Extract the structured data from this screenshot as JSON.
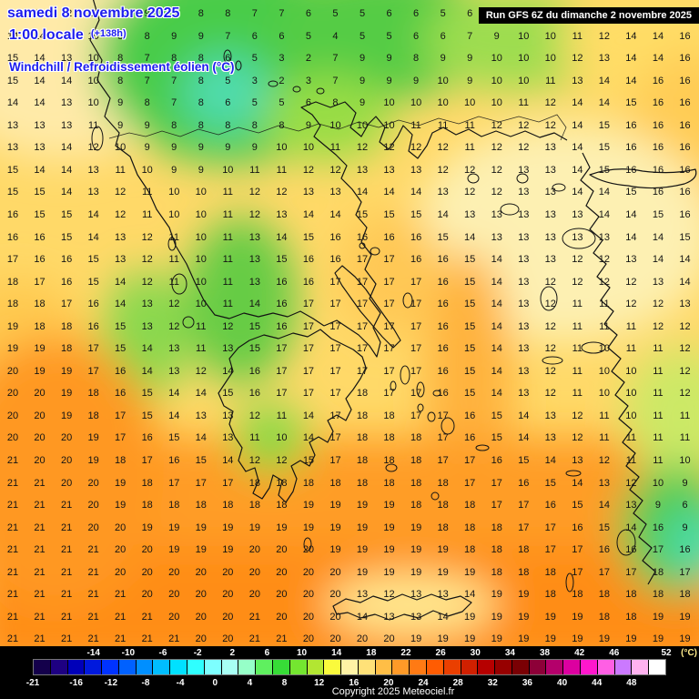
{
  "header": {
    "date": "samedi 8 novembre 2025",
    "time": "1:00 locale",
    "offset": "(+138h)",
    "parameter": "Windchill / Refroidissement éolien (°C)",
    "run": "Run GFS 6Z du dimanche 2 novembre 2025"
  },
  "footer": {
    "copyright": "Copyright 2025 Meteociel.fr",
    "unit": "(°C)",
    "scale_min": -21,
    "scale_max": 52,
    "scale_top_labels": [
      -14,
      -10,
      -6,
      -2,
      2,
      6,
      10,
      14,
      18,
      22,
      26,
      30,
      34,
      38,
      42,
      46,
      52
    ],
    "scale_bottom_labels": [
      -21,
      -16,
      -12,
      -8,
      -4,
      0,
      4,
      8,
      12,
      16,
      20,
      24,
      28,
      32,
      36,
      40,
      44,
      48
    ],
    "colorbar_colors": [
      "#14004b",
      "#1e0082",
      "#0000b9",
      "#0019dd",
      "#0033ff",
      "#0061ff",
      "#008fff",
      "#00bdff",
      "#00e1ff",
      "#2fffff",
      "#7dffff",
      "#a8fff4",
      "#96ffc8",
      "#5ff05f",
      "#37dc37",
      "#74e630",
      "#b2e632",
      "#fafa3c",
      "#fff3a5",
      "#ffe178",
      "#ffbe46",
      "#ff9a28",
      "#ff7a14",
      "#ff5c02",
      "#ea3f00",
      "#d02000",
      "#b60000",
      "#970000",
      "#7a0004",
      "#8d0038",
      "#b4006b",
      "#dc00a0",
      "#ff17cc",
      "#ff5fe4",
      "#cb79ff",
      "#ffb2ef",
      "#ffffff"
    ]
  },
  "map": {
    "temperature_grid": {
      "rows": [
        [
          14,
          13,
          12,
          10,
          8,
          9,
          9,
          8,
          8,
          7,
          7,
          6,
          5,
          5,
          6,
          6,
          5,
          6,
          8,
          9,
          9,
          10,
          11,
          12,
          14,
          14
        ],
        [
          14,
          14,
          12,
          10,
          8,
          8,
          9,
          9,
          7,
          6,
          6,
          5,
          4,
          5,
          5,
          6,
          6,
          7,
          9,
          10,
          10,
          11,
          12,
          14,
          14,
          16
        ],
        [
          15,
          14,
          13,
          10,
          8,
          7,
          8,
          8,
          6,
          5,
          3,
          2,
          7,
          9,
          9,
          8,
          9,
          9,
          10,
          10,
          10,
          12,
          13,
          14,
          14,
          16
        ],
        [
          15,
          14,
          14,
          10,
          8,
          7,
          7,
          8,
          5,
          3,
          2,
          3,
          7,
          9,
          9,
          9,
          10,
          9,
          10,
          10,
          11,
          13,
          14,
          14,
          16,
          16
        ],
        [
          14,
          14,
          13,
          10,
          9,
          8,
          7,
          8,
          6,
          5,
          5,
          6,
          8,
          9,
          10,
          10,
          10,
          10,
          10,
          11,
          12,
          14,
          14,
          15,
          16,
          16
        ],
        [
          13,
          13,
          13,
          11,
          9,
          9,
          8,
          8,
          8,
          8,
          8,
          9,
          10,
          10,
          10,
          11,
          11,
          11,
          12,
          12,
          12,
          14,
          15,
          16,
          16,
          16
        ],
        [
          13,
          13,
          14,
          12,
          10,
          9,
          9,
          9,
          9,
          9,
          10,
          10,
          11,
          12,
          12,
          12,
          12,
          11,
          12,
          12,
          13,
          14,
          15,
          16,
          16,
          16
        ],
        [
          15,
          14,
          14,
          13,
          11,
          10,
          9,
          9,
          10,
          11,
          11,
          12,
          12,
          13,
          13,
          13,
          12,
          12,
          12,
          13,
          13,
          14,
          15,
          16,
          16,
          16
        ],
        [
          15,
          15,
          14,
          13,
          12,
          11,
          10,
          10,
          11,
          12,
          12,
          13,
          13,
          14,
          14,
          14,
          13,
          12,
          12,
          13,
          13,
          14,
          14,
          15,
          16,
          16
        ],
        [
          16,
          15,
          15,
          14,
          12,
          11,
          10,
          10,
          11,
          12,
          13,
          14,
          14,
          15,
          15,
          15,
          14,
          13,
          13,
          13,
          13,
          13,
          14,
          14,
          15,
          16
        ],
        [
          16,
          16,
          15,
          14,
          13,
          12,
          11,
          10,
          11,
          13,
          14,
          15,
          16,
          16,
          16,
          16,
          15,
          14,
          13,
          13,
          13,
          13,
          13,
          14,
          14,
          15
        ],
        [
          17,
          16,
          16,
          15,
          13,
          12,
          11,
          10,
          11,
          13,
          15,
          16,
          16,
          17,
          17,
          16,
          16,
          15,
          14,
          13,
          13,
          12,
          12,
          13,
          14,
          14
        ],
        [
          18,
          17,
          16,
          15,
          14,
          12,
          11,
          10,
          11,
          13,
          16,
          16,
          17,
          17,
          17,
          17,
          16,
          15,
          14,
          13,
          12,
          12,
          12,
          12,
          13,
          14
        ],
        [
          18,
          18,
          17,
          16,
          14,
          13,
          12,
          10,
          11,
          14,
          16,
          17,
          17,
          17,
          17,
          17,
          16,
          15,
          14,
          13,
          12,
          11,
          11,
          12,
          12,
          13
        ],
        [
          19,
          18,
          18,
          16,
          15,
          13,
          12,
          11,
          12,
          15,
          16,
          17,
          17,
          17,
          17,
          17,
          16,
          15,
          14,
          13,
          12,
          11,
          11,
          11,
          12,
          12
        ],
        [
          19,
          19,
          18,
          17,
          15,
          14,
          13,
          11,
          13,
          15,
          17,
          17,
          17,
          17,
          17,
          17,
          16,
          15,
          14,
          13,
          12,
          11,
          10,
          11,
          11,
          12
        ],
        [
          20,
          19,
          19,
          17,
          16,
          14,
          13,
          12,
          14,
          16,
          17,
          17,
          17,
          17,
          17,
          17,
          16,
          15,
          14,
          13,
          12,
          11,
          10,
          10,
          11,
          12
        ],
        [
          20,
          20,
          19,
          18,
          16,
          15,
          14,
          14,
          15,
          16,
          17,
          17,
          17,
          18,
          17,
          17,
          16,
          15,
          14,
          13,
          12,
          11,
          10,
          10,
          11,
          12
        ],
        [
          20,
          20,
          19,
          18,
          17,
          15,
          14,
          13,
          13,
          12,
          11,
          14,
          17,
          18,
          18,
          17,
          17,
          16,
          15,
          14,
          13,
          12,
          11,
          10,
          11,
          11
        ],
        [
          20,
          20,
          20,
          19,
          17,
          16,
          15,
          14,
          13,
          11,
          10,
          14,
          17,
          18,
          18,
          18,
          17,
          16,
          15,
          14,
          13,
          12,
          11,
          11,
          11,
          11
        ],
        [
          21,
          20,
          20,
          19,
          18,
          17,
          16,
          15,
          14,
          12,
          12,
          15,
          17,
          18,
          18,
          18,
          17,
          17,
          16,
          15,
          14,
          13,
          12,
          11,
          11,
          10
        ],
        [
          21,
          21,
          20,
          20,
          19,
          18,
          17,
          17,
          17,
          18,
          18,
          18,
          18,
          18,
          18,
          18,
          18,
          17,
          17,
          16,
          15,
          14,
          13,
          12,
          10,
          9
        ],
        [
          21,
          21,
          21,
          20,
          19,
          18,
          18,
          18,
          18,
          18,
          18,
          19,
          19,
          19,
          19,
          18,
          18,
          18,
          17,
          17,
          16,
          15,
          14,
          13,
          9,
          6
        ],
        [
          21,
          21,
          21,
          20,
          20,
          19,
          19,
          19,
          19,
          19,
          19,
          19,
          19,
          19,
          19,
          19,
          18,
          18,
          18,
          17,
          17,
          16,
          15,
          14,
          16,
          9
        ],
        [
          21,
          21,
          21,
          21,
          20,
          20,
          19,
          19,
          19,
          20,
          20,
          20,
          19,
          19,
          19,
          19,
          19,
          18,
          18,
          18,
          17,
          17,
          16,
          16,
          17,
          16
        ],
        [
          21,
          21,
          21,
          21,
          20,
          20,
          20,
          20,
          20,
          20,
          20,
          20,
          20,
          19,
          19,
          19,
          19,
          19,
          18,
          18,
          18,
          17,
          17,
          17,
          18,
          17
        ],
        [
          21,
          21,
          21,
          21,
          21,
          20,
          20,
          20,
          20,
          20,
          20,
          20,
          20,
          13,
          12,
          13,
          13,
          14,
          19,
          19,
          18,
          18,
          18,
          18,
          18,
          18
        ],
        [
          21,
          21,
          21,
          21,
          21,
          21,
          20,
          20,
          20,
          21,
          20,
          20,
          20,
          14,
          13,
          13,
          14,
          19,
          19,
          19,
          19,
          19,
          18,
          18,
          19,
          19
        ],
        [
          21,
          21,
          21,
          21,
          21,
          21,
          21,
          20,
          20,
          21,
          21,
          20,
          20,
          20,
          20,
          19,
          19,
          19,
          19,
          19,
          19,
          19,
          19,
          19,
          19,
          19
        ]
      ]
    }
  }
}
